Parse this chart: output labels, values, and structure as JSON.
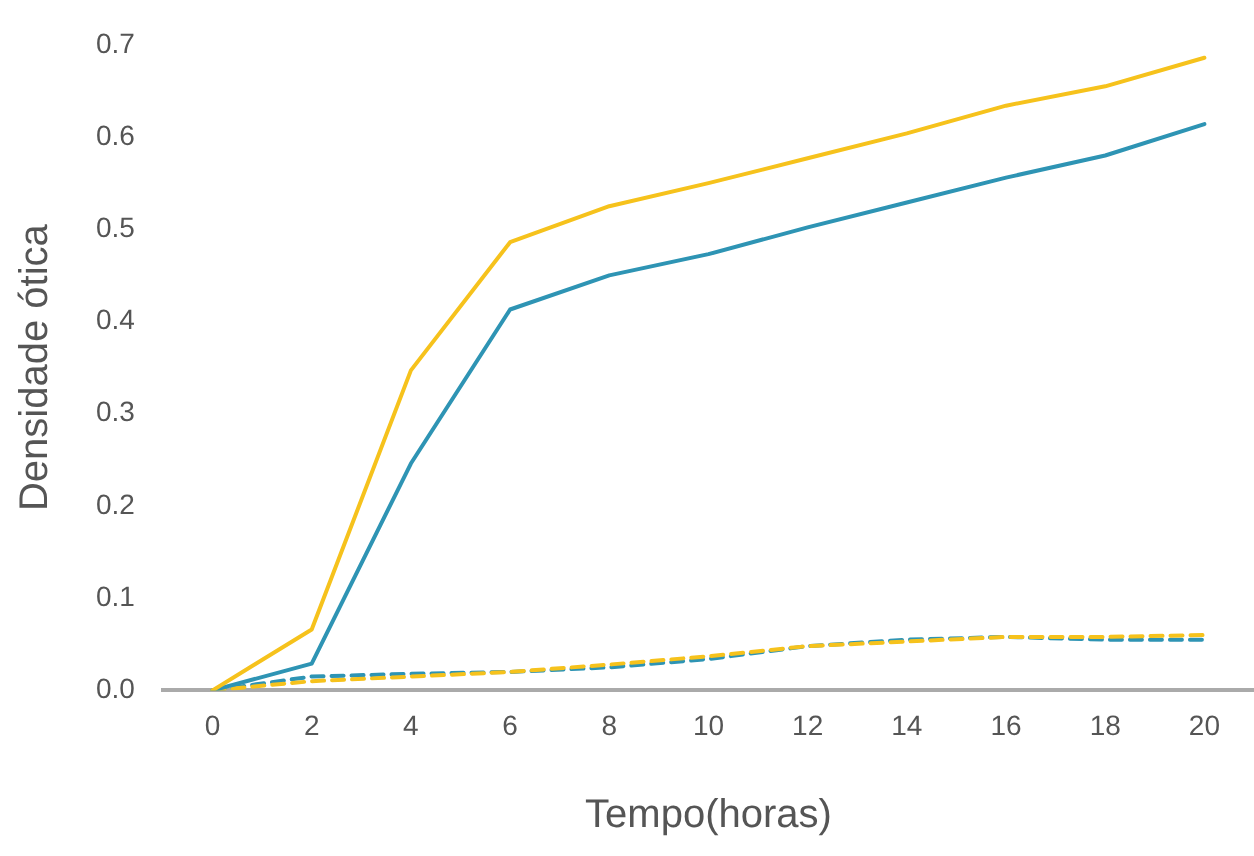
{
  "chart_data": {
    "type": "line",
    "xlabel": "Tempo(horas)",
    "ylabel": "Densidade ótica",
    "categories": [
      "0",
      "2",
      "4",
      "6",
      "8",
      "10",
      "12",
      "14",
      "16",
      "18",
      "20"
    ],
    "series": [
      {
        "color": "#f6c21c",
        "line_style": "solid",
        "values": [
          0,
          0.066,
          0.347,
          0.486,
          0.525,
          0.55,
          0.577,
          0.604,
          0.634,
          0.655,
          0.686
        ]
      },
      {
        "color": "#2e94b4",
        "line_style": "solid",
        "values": [
          0,
          0.029,
          0.246,
          0.413,
          0.45,
          0.473,
          0.502,
          0.529,
          0.556,
          0.58,
          0.614
        ]
      },
      {
        "color": "#f6c21c",
        "line_style": "dashed",
        "values": [
          0,
          0.01,
          0.015,
          0.02,
          0.028,
          0.037,
          0.048,
          0.053,
          0.058,
          0.058,
          0.06
        ]
      },
      {
        "color": "#2e94b4",
        "line_style": "dashed",
        "values": [
          0,
          0.015,
          0.018,
          0.02,
          0.025,
          0.034,
          0.048,
          0.055,
          0.058,
          0.055,
          0.055
        ]
      }
    ],
    "ylim": [
      0,
      0.7
    ],
    "yticks": [
      {
        "value": 0,
        "label": "0.0"
      },
      0.1,
      0.2,
      0.3,
      0.4,
      0.5,
      0.6,
      0.7
    ],
    "grid": false,
    "legend": false,
    "marker": "none"
  }
}
